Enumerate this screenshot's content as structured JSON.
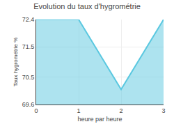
{
  "chart_data": {
    "type": "area",
    "title": "Evolution du taux d'hygrométrie",
    "xlabel": "heure par heure",
    "ylabel": "Taux hygrométrie %",
    "x": [
      0,
      1,
      2,
      3
    ],
    "values": [
      72.4,
      72.4,
      70.1,
      72.4
    ],
    "color": "#5bc8e0",
    "xlim": [
      0,
      3
    ],
    "xticks": [
      0,
      1,
      2,
      3
    ],
    "ylim": [
      69.6,
      72.4
    ],
    "yticks": [
      69.6,
      70.5,
      71.5,
      72.4
    ],
    "grid": true
  }
}
